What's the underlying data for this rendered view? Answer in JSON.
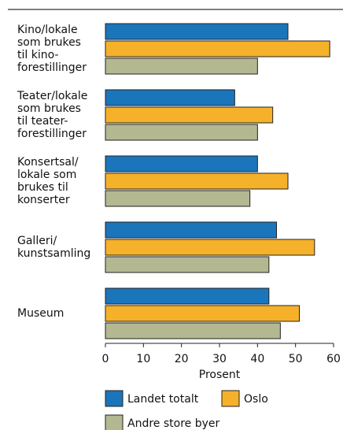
{
  "chart_data": {
    "type": "barh",
    "categories": [
      [
        "Kino/lokale",
        "som brukes",
        "til kino-",
        "forestillinger"
      ],
      [
        "Teater/lokale",
        "som brukes",
        "til teater-",
        "forestillinger"
      ],
      [
        "Konsertsal/",
        "lokale som",
        "brukes til",
        "konserter"
      ],
      [
        "Galleri/",
        "kunstsamling"
      ],
      [
        "Museum"
      ]
    ],
    "series": [
      {
        "name": "Landet totalt",
        "color": "#1b75bb",
        "values": [
          48,
          34,
          40,
          45,
          43
        ]
      },
      {
        "name": "Oslo",
        "color": "#f6b12a",
        "values": [
          59,
          44,
          48,
          55,
          51
        ]
      },
      {
        "name": "Andre store byer",
        "color": "#b4b890",
        "values": [
          40,
          40,
          38,
          43,
          46
        ]
      }
    ],
    "xlabel": "Prosent",
    "xlim": [
      0,
      60
    ],
    "xticks": [
      0,
      10,
      20,
      30,
      40,
      50,
      60
    ]
  }
}
